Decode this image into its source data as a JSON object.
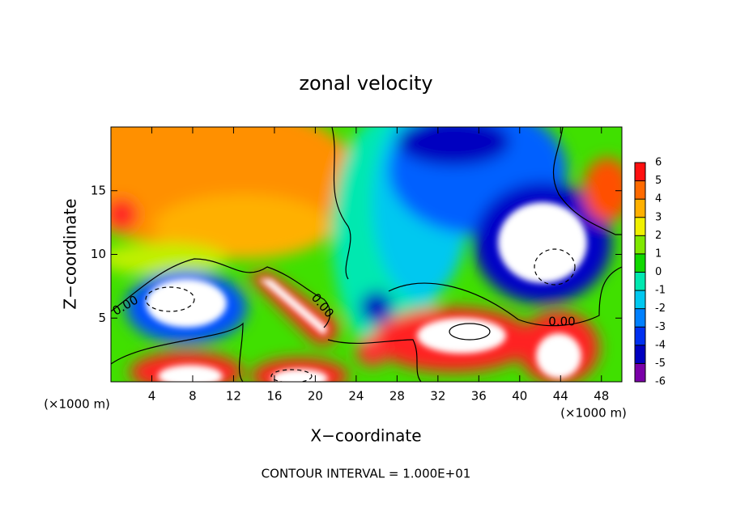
{
  "chart_data": {
    "type": "contour",
    "title": "zonal velocity",
    "x_label": "X−coordinate",
    "y_label": "Z−coordinate",
    "x_unit_label": "(×1000 m)",
    "y_unit_label": "(×1000 m)",
    "xlim": [
      0,
      50
    ],
    "xticks": [
      4,
      8,
      12,
      16,
      20,
      24,
      28,
      32,
      36,
      40,
      44,
      48
    ],
    "ylim": [
      0,
      20
    ],
    "yticks": [
      5,
      10,
      15
    ],
    "colorbar": {
      "lim": [
        -6,
        6
      ],
      "ticks": [
        -6,
        -5,
        -4,
        -3,
        -2,
        -1,
        0,
        1,
        2,
        3,
        4,
        5,
        6
      ],
      "colors": [
        "#7a00a8",
        "#0000c0",
        "#0030f0",
        "#0080ff",
        "#00c8f0",
        "#00e8b0",
        "#10d800",
        "#80e800",
        "#f0f000",
        "#ffb000",
        "#ff6a00",
        "#ff1010"
      ]
    },
    "contour_labels": [
      "0.00",
      "0.00",
      "0.00"
    ],
    "footer": "CONTOUR INTERVAL = 1.000E+01"
  }
}
